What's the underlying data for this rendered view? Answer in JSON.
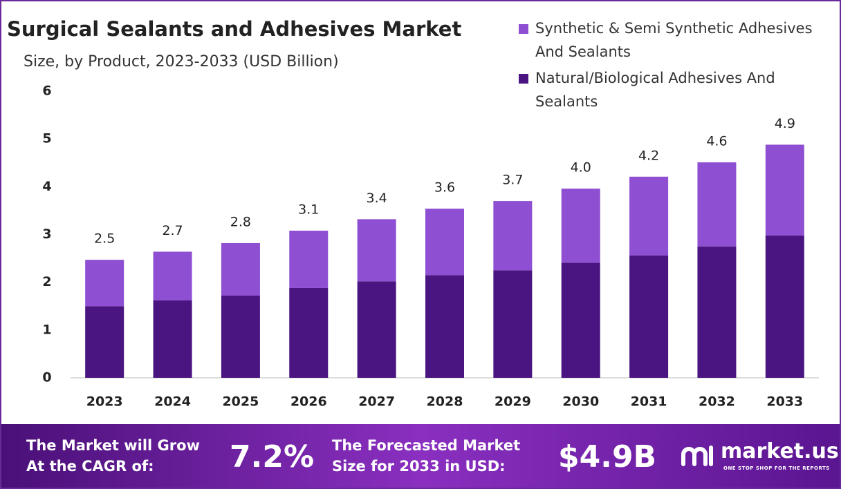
{
  "chart_data": {
    "type": "stacked-bar",
    "title": "Surgical Sealants and Adhesives Market",
    "subtitle": "Size, by Product, 2023-2033 (USD Billion)",
    "categories": [
      "2023",
      "2024",
      "2025",
      "2026",
      "2027",
      "2028",
      "2029",
      "2030",
      "2031",
      "2032",
      "2033"
    ],
    "series": [
      {
        "name": "Synthetic & Semi Synthetic Adhesives And Sealants",
        "color": "#8f4fd3",
        "values": [
          0.97,
          1.02,
          1.1,
          1.2,
          1.3,
          1.39,
          1.45,
          1.55,
          1.65,
          1.76,
          1.9
        ]
      },
      {
        "name": "Natural/Biological Adhesives And Sealants",
        "color": "#4a1580",
        "values": [
          1.5,
          1.62,
          1.72,
          1.88,
          2.02,
          2.15,
          2.25,
          2.41,
          2.56,
          2.75,
          2.98
        ]
      }
    ],
    "totals": {
      "values": [
        2.5,
        2.7,
        2.8,
        3.1,
        3.4,
        3.6,
        3.7,
        4.0,
        4.2,
        4.6,
        4.9
      ],
      "value_labels": [
        "2.5",
        "2.7",
        "2.8",
        "3.1",
        "3.4",
        "3.6",
        "3.7",
        "4.0",
        "4.2",
        "4.6",
        "4.9"
      ]
    },
    "ylim": [
      0,
      6
    ],
    "yticks": [
      0,
      1,
      2,
      3,
      4,
      5,
      6
    ],
    "grid": false,
    "legend": "top-right"
  },
  "footer": {
    "cagr_text": [
      "The Market will Grow",
      "At the CAGR of:"
    ],
    "cagr": "7.2%",
    "forecast_text": [
      "The Forecasted Market",
      "Size for 2033 in USD:"
    ],
    "forecast": "$4.9B",
    "brand": "market.us",
    "tagline": "ONE STOP SHOP FOR THE REPORTS"
  }
}
